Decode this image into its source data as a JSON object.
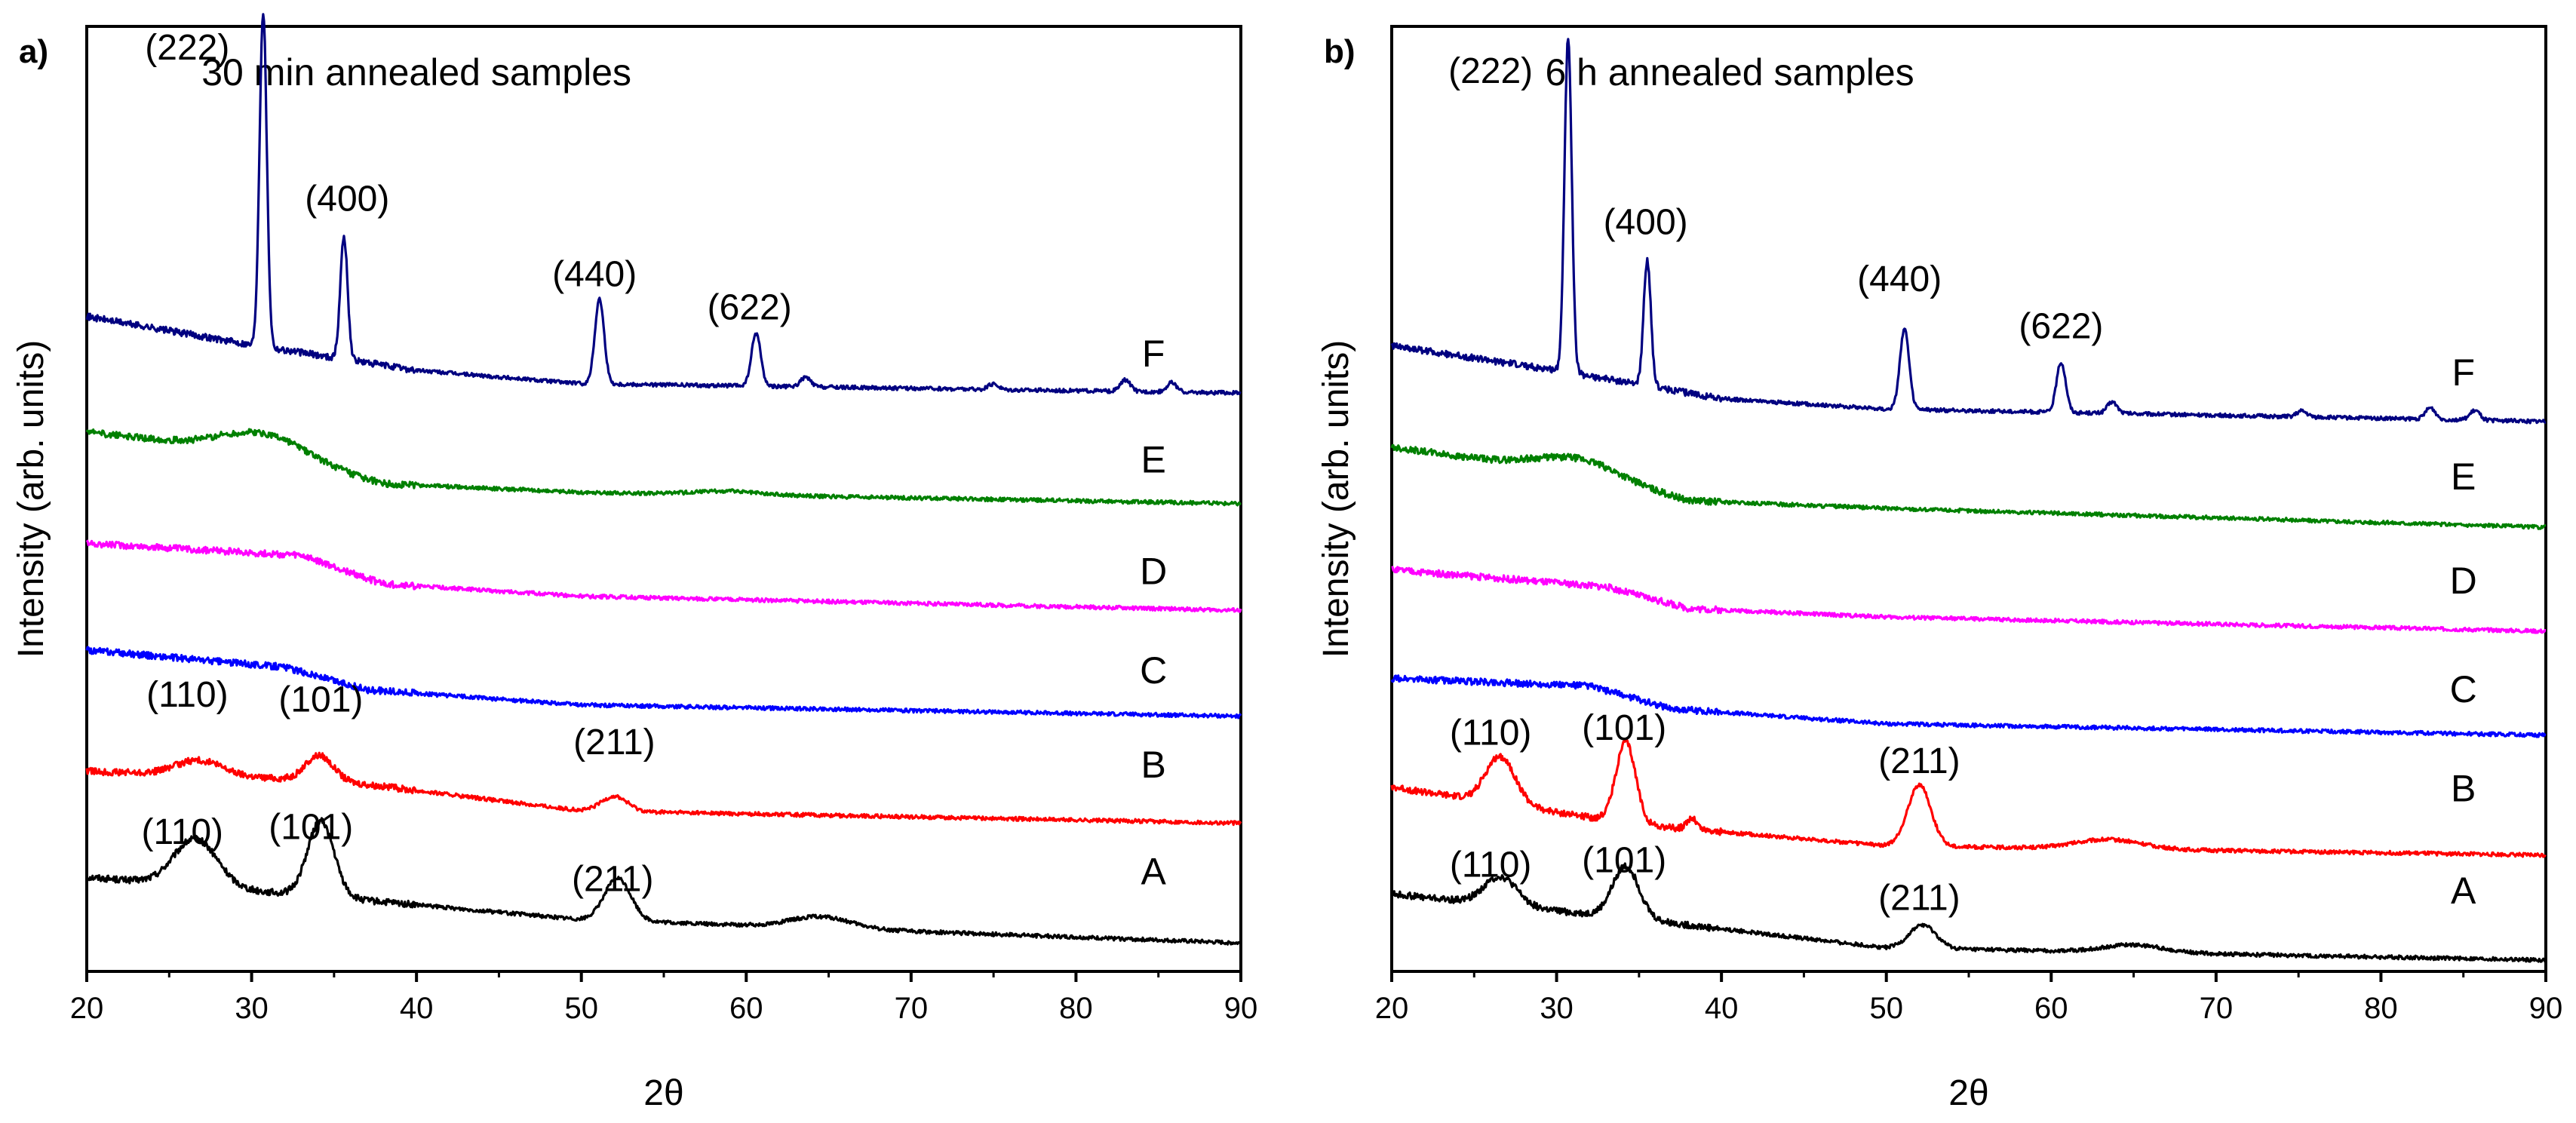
{
  "chart_data": [
    {
      "type": "line",
      "panel_label": "a)",
      "title": "30 min annealed samples",
      "xlabel": "2θ",
      "ylabel": "Intensity (arb. units)",
      "xlim": [
        20,
        90
      ],
      "xticks": [
        20,
        30,
        40,
        50,
        60,
        70,
        80,
        90
      ],
      "ylim": [
        0,
        10
      ],
      "yticks_shown": false,
      "colors": {
        "A": "#000000",
        "B": "#ff0000",
        "C": "#0000ff",
        "D": "#ff00ff",
        "E": "#008000",
        "F": "#000080"
      },
      "series": [
        {
          "name": "A",
          "color": "#000000",
          "baseline": [
            [
              20,
              1.0
            ],
            [
              35,
              0.78
            ],
            [
              50,
              0.55
            ],
            [
              90,
              0.3
            ]
          ],
          "peaks": [
            {
              "x": 26.6,
              "h": 0.5,
              "w": 1.3
            },
            {
              "x": 34.2,
              "h": 0.8,
              "w": 0.8
            },
            {
              "x": 52.2,
              "h": 0.45,
              "w": 0.8
            },
            {
              "x": 64.5,
              "h": 0.12,
              "w": 1.8
            }
          ]
        },
        {
          "name": "B",
          "color": "#ff0000",
          "baseline": [
            [
              20,
              2.12
            ],
            [
              35,
              2.02
            ],
            [
              50,
              1.7
            ],
            [
              90,
              1.57
            ]
          ],
          "peaks": [
            {
              "x": 26.8,
              "h": 0.16,
              "w": 1.4
            },
            {
              "x": 34.1,
              "h": 0.26,
              "w": 0.8
            },
            {
              "x": 52.0,
              "h": 0.16,
              "w": 0.8
            }
          ]
        },
        {
          "name": "C",
          "color": "#0000ff",
          "baseline": [
            [
              20,
              3.4
            ],
            [
              32,
              3.22
            ],
            [
              37,
              2.98
            ],
            [
              50,
              2.82
            ],
            [
              90,
              2.7
            ]
          ],
          "peaks": []
        },
        {
          "name": "D",
          "color": "#ff00ff",
          "baseline": [
            [
              20,
              4.53
            ],
            [
              33,
              4.4
            ],
            [
              38,
              4.1
            ],
            [
              50,
              3.97
            ],
            [
              90,
              3.82
            ]
          ],
          "peaks": []
        },
        {
          "name": "E",
          "color": "#008000",
          "baseline": [
            [
              20,
              5.71
            ],
            [
              28,
              5.55
            ],
            [
              38,
              5.16
            ],
            [
              50,
              5.07
            ],
            [
              90,
              4.95
            ]
          ],
          "peaks": [
            {
              "x": 31.0,
              "h": 0.25,
              "w": 2.5
            },
            {
              "x": 59.0,
              "h": 0.04,
              "w": 2.0
            }
          ]
        },
        {
          "name": "F",
          "color": "#000080",
          "baseline": [
            [
              20,
              6.93
            ],
            [
              30,
              6.63
            ],
            [
              40,
              6.36
            ],
            [
              50,
              6.22
            ],
            [
              90,
              6.12
            ]
          ],
          "peaks": [
            {
              "x": 30.7,
              "h": 3.55,
              "w": 0.22
            },
            {
              "x": 35.6,
              "h": 1.3,
              "w": 0.22
            },
            {
              "x": 51.1,
              "h": 0.9,
              "w": 0.28
            },
            {
              "x": 60.6,
              "h": 0.56,
              "w": 0.28
            },
            {
              "x": 63.6,
              "h": 0.1,
              "w": 0.3
            },
            {
              "x": 75.0,
              "h": 0.06,
              "w": 0.3
            },
            {
              "x": 83.0,
              "h": 0.12,
              "w": 0.3
            },
            {
              "x": 85.8,
              "h": 0.1,
              "w": 0.3
            }
          ]
        }
      ],
      "curve_labels": [
        {
          "text": "A",
          "x": 84.7,
          "y": 0.92
        },
        {
          "text": "B",
          "x": 84.7,
          "y": 2.05
        },
        {
          "text": "C",
          "x": 84.7,
          "y": 3.05
        },
        {
          "text": "D",
          "x": 84.7,
          "y": 4.1
        },
        {
          "text": "E",
          "x": 84.7,
          "y": 5.28
        },
        {
          "text": "F",
          "x": 84.7,
          "y": 6.4
        }
      ],
      "annotations": [
        {
          "text": "(222)",
          "x": 26.1,
          "y": 9.65
        },
        {
          "text": "(400)",
          "x": 35.8,
          "y": 8.05
        },
        {
          "text": "(440)",
          "x": 50.8,
          "y": 7.25
        },
        {
          "text": "(622)",
          "x": 60.2,
          "y": 6.9
        },
        {
          "text": "(110)",
          "x": 26.1,
          "y": 2.8
        },
        {
          "text": "(101)",
          "x": 34.2,
          "y": 2.75
        },
        {
          "text": "(211)",
          "x": 52.0,
          "y": 2.3
        },
        {
          "text": "(110)",
          "x": 25.8,
          "y": 1.35
        },
        {
          "text": "(101)",
          "x": 33.6,
          "y": 1.4
        },
        {
          "text": "(211)",
          "x": 51.9,
          "y": 0.85
        }
      ]
    },
    {
      "type": "line",
      "panel_label": "b)",
      "title": "6 h annealed samples",
      "xlabel": "2θ",
      "ylabel": "Intensity (arb. units)",
      "xlim": [
        20,
        90
      ],
      "xticks": [
        20,
        30,
        40,
        50,
        60,
        70,
        80,
        90
      ],
      "ylim": [
        0,
        10
      ],
      "yticks_shown": false,
      "colors": {
        "A": "#000000",
        "B": "#ff0000",
        "C": "#0000ff",
        "D": "#ff00ff",
        "E": "#008000",
        "F": "#000080"
      },
      "series": [
        {
          "name": "A",
          "color": "#000000",
          "baseline": [
            [
              20,
              0.82
            ],
            [
              35,
              0.55
            ],
            [
              50,
              0.25
            ],
            [
              90,
              0.12
            ]
          ],
          "peaks": [
            {
              "x": 26.6,
              "h": 0.3,
              "w": 1.0
            },
            {
              "x": 34.2,
              "h": 0.55,
              "w": 0.8
            },
            {
              "x": 52.2,
              "h": 0.25,
              "w": 0.8
            },
            {
              "x": 65.0,
              "h": 0.08,
              "w": 1.8
            }
          ]
        },
        {
          "name": "B",
          "color": "#ff0000",
          "baseline": [
            [
              20,
              1.95
            ],
            [
              35,
              1.55
            ],
            [
              50,
              1.33
            ],
            [
              90,
              1.23
            ]
          ],
          "peaks": [
            {
              "x": 26.6,
              "h": 0.5,
              "w": 0.9
            },
            {
              "x": 34.2,
              "h": 0.85,
              "w": 0.6
            },
            {
              "x": 38.2,
              "h": 0.12,
              "w": 0.3
            },
            {
              "x": 52.0,
              "h": 0.65,
              "w": 0.7
            },
            {
              "x": 63.5,
              "h": 0.1,
              "w": 2.0
            }
          ]
        },
        {
          "name": "C",
          "color": "#0000ff",
          "baseline": [
            [
              20,
              3.1
            ],
            [
              32,
              3.02
            ],
            [
              37,
              2.78
            ],
            [
              50,
              2.62
            ],
            [
              90,
              2.5
            ]
          ],
          "peaks": []
        },
        {
          "name": "D",
          "color": "#ff00ff",
          "baseline": [
            [
              20,
              4.25
            ],
            [
              33,
              4.07
            ],
            [
              38,
              3.84
            ],
            [
              50,
              3.75
            ],
            [
              90,
              3.6
            ]
          ],
          "peaks": []
        },
        {
          "name": "E",
          "color": "#008000",
          "baseline": [
            [
              20,
              5.55
            ],
            [
              28,
              5.35
            ],
            [
              38,
              4.98
            ],
            [
              50,
              4.9
            ],
            [
              90,
              4.7
            ]
          ],
          "peaks": [
            {
              "x": 31.5,
              "h": 0.2,
              "w": 2.5
            }
          ]
        },
        {
          "name": "F",
          "color": "#000080",
          "baseline": [
            [
              20,
              6.62
            ],
            [
              30,
              6.36
            ],
            [
              40,
              6.06
            ],
            [
              50,
              5.95
            ],
            [
              90,
              5.82
            ]
          ],
          "peaks": [
            {
              "x": 30.7,
              "h": 3.55,
              "w": 0.22
            },
            {
              "x": 35.5,
              "h": 1.33,
              "w": 0.22
            },
            {
              "x": 51.1,
              "h": 0.85,
              "w": 0.28
            },
            {
              "x": 60.6,
              "h": 0.53,
              "w": 0.28
            },
            {
              "x": 63.7,
              "h": 0.12,
              "w": 0.3
            },
            {
              "x": 75.2,
              "h": 0.06,
              "w": 0.3
            },
            {
              "x": 83.0,
              "h": 0.12,
              "w": 0.3
            },
            {
              "x": 85.7,
              "h": 0.1,
              "w": 0.3
            }
          ]
        }
      ],
      "curve_labels": [
        {
          "text": "A",
          "x": 85.0,
          "y": 0.72
        },
        {
          "text": "B",
          "x": 85.0,
          "y": 1.8
        },
        {
          "text": "C",
          "x": 85.0,
          "y": 2.85
        },
        {
          "text": "D",
          "x": 85.0,
          "y": 4.0
        },
        {
          "text": "E",
          "x": 85.0,
          "y": 5.1
        },
        {
          "text": "F",
          "x": 85.0,
          "y": 6.2
        }
      ],
      "annotations": [
        {
          "text": "(222)",
          "x": 26.0,
          "y": 9.4
        },
        {
          "text": "(400)",
          "x": 35.4,
          "y": 7.8
        },
        {
          "text": "(440)",
          "x": 50.8,
          "y": 7.2
        },
        {
          "text": "(622)",
          "x": 60.6,
          "y": 6.7
        },
        {
          "text": "(110)",
          "x": 26.0,
          "y": 2.4
        },
        {
          "text": "(101)",
          "x": 34.1,
          "y": 2.45
        },
        {
          "text": "(211)",
          "x": 52.0,
          "y": 2.1
        },
        {
          "text": "(110)",
          "x": 26.0,
          "y": 1.0
        },
        {
          "text": "(101)",
          "x": 34.1,
          "y": 1.05
        },
        {
          "text": "(211)",
          "x": 52.0,
          "y": 0.65
        }
      ]
    }
  ]
}
